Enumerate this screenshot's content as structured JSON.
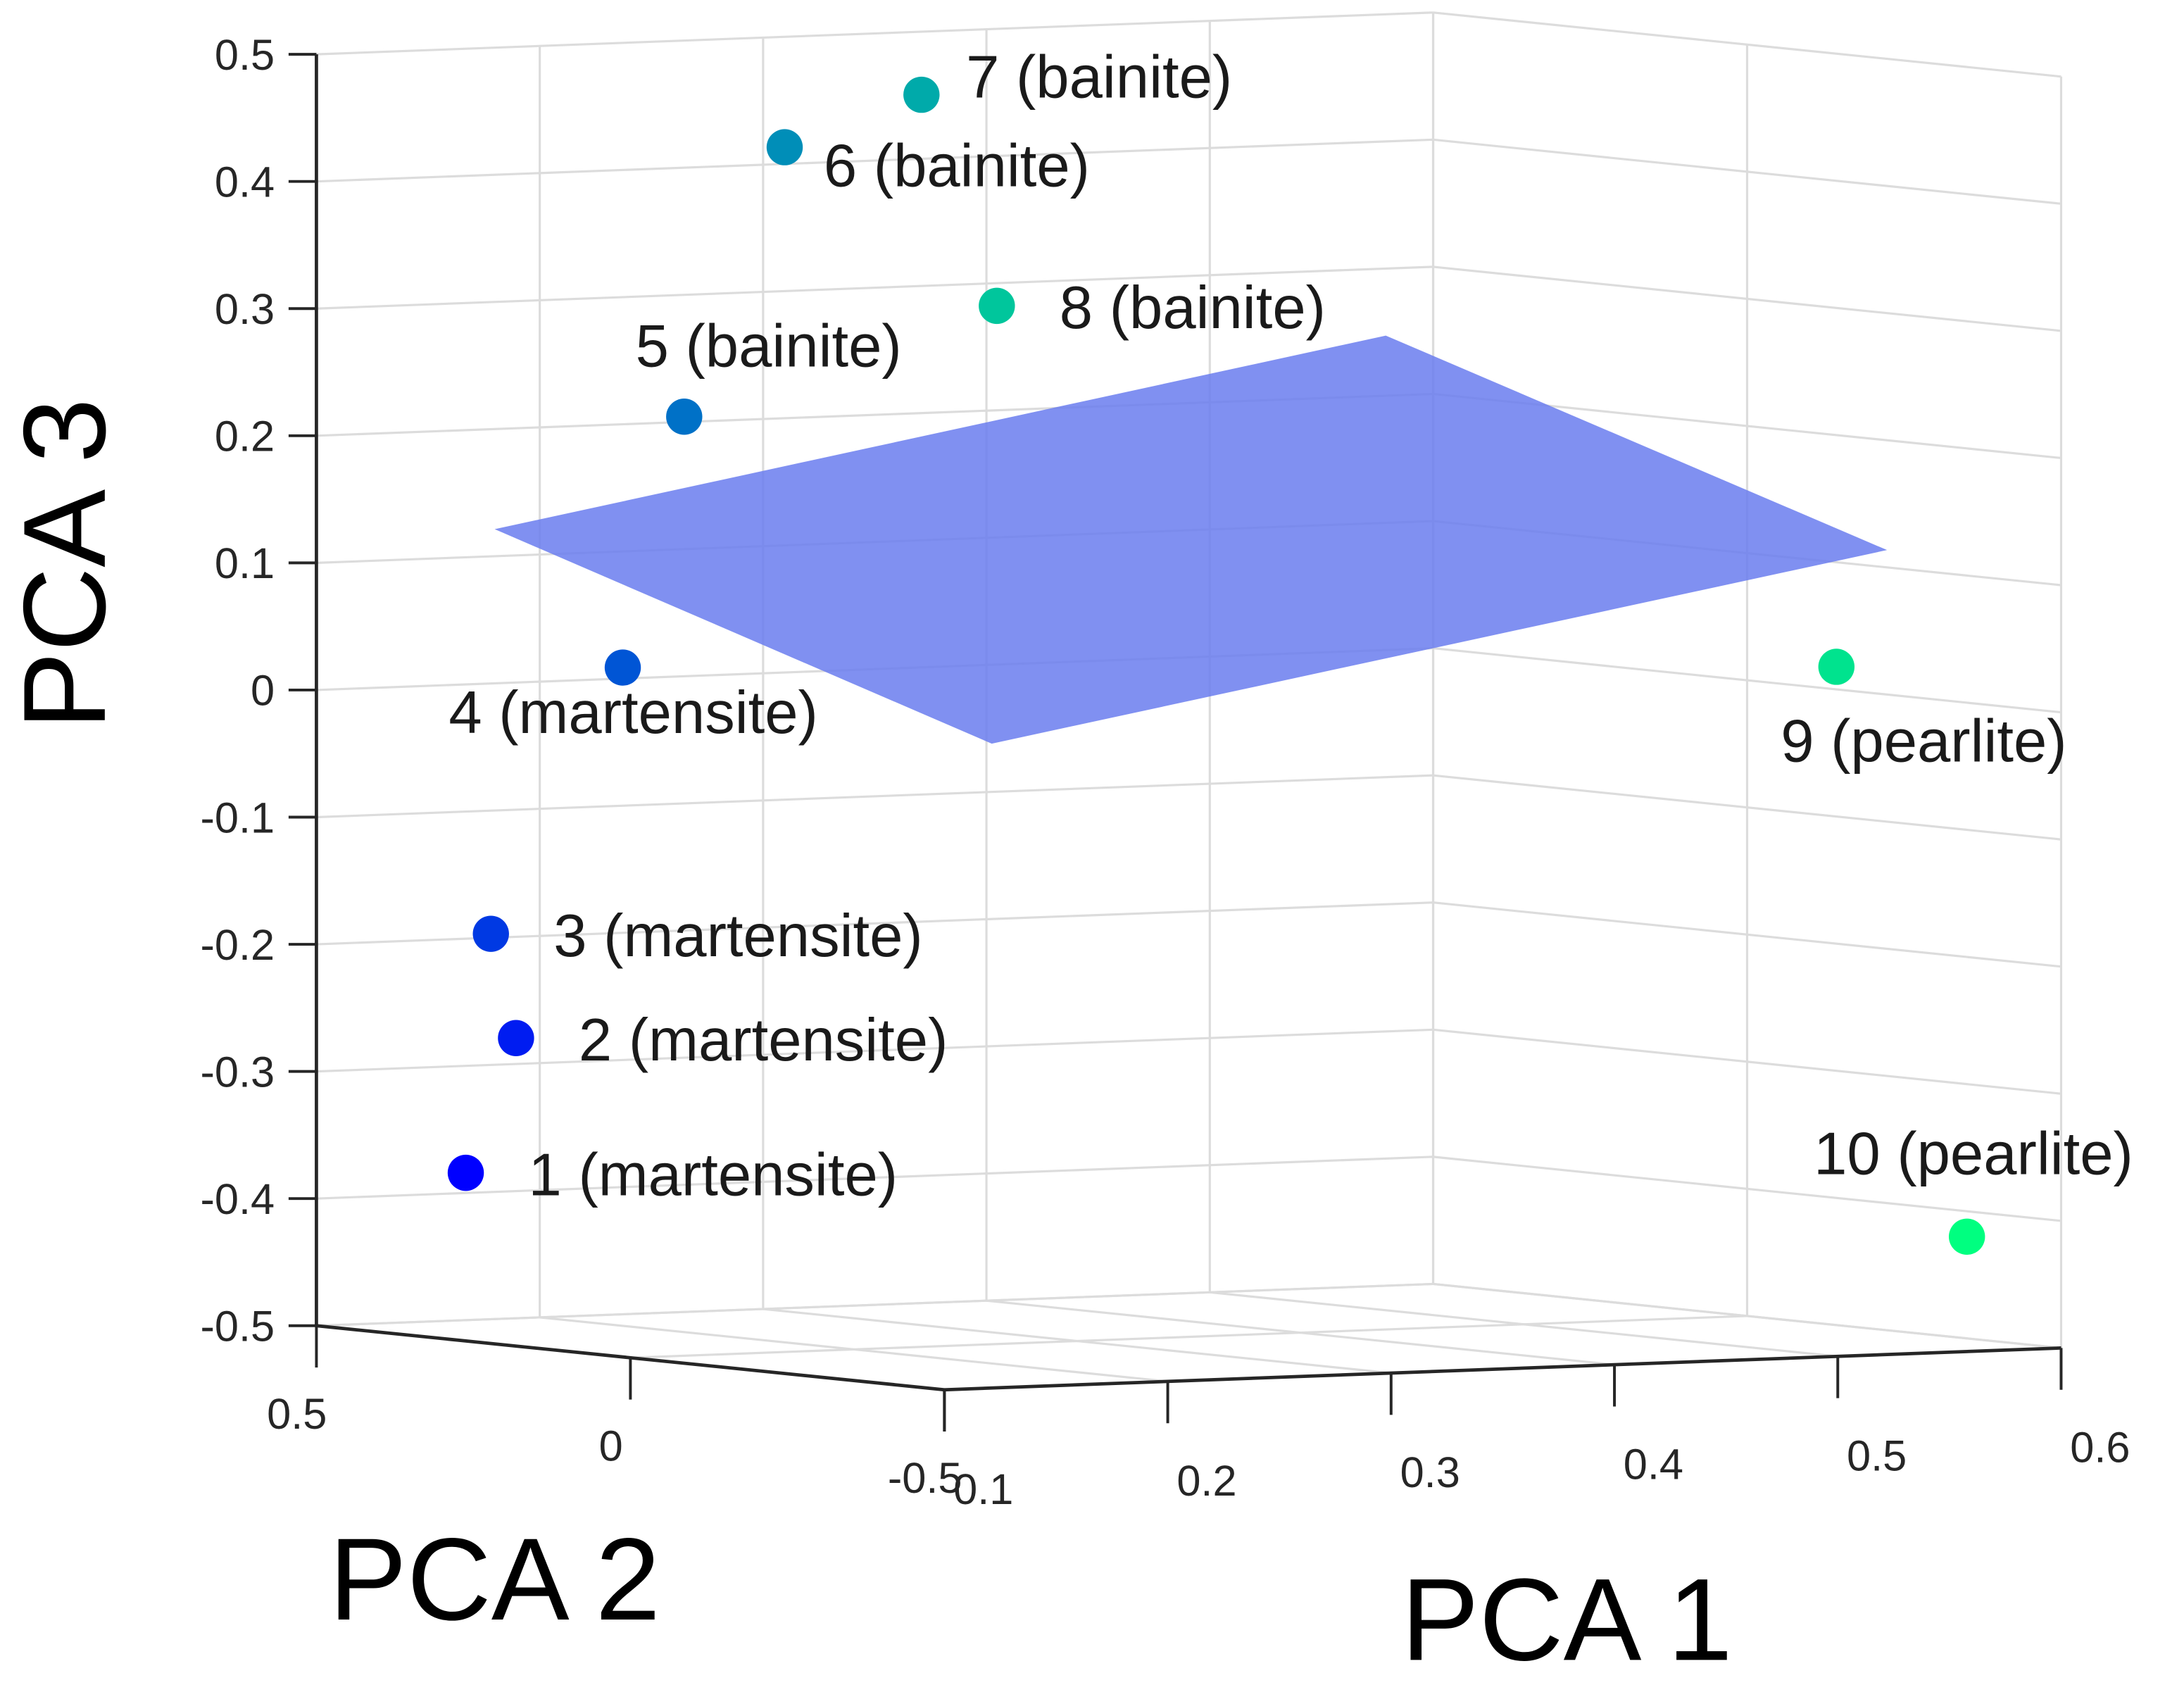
{
  "chart_data": {
    "type": "scatter",
    "dimensions": 3,
    "title": "",
    "xlabel": "PCA 1",
    "ylabel": "PCA 2",
    "zlabel": "PCA 3",
    "xlim": [
      0.1,
      0.6
    ],
    "ylim": [
      -0.5,
      0.5
    ],
    "zlim": [
      -0.5,
      0.5
    ],
    "grid": true,
    "x_ticks": [
      "0.1",
      "0.2",
      "0.3",
      "0.4",
      "0.5",
      "0.6"
    ],
    "y_ticks": [
      "-0.5",
      "0",
      "0.5"
    ],
    "z_ticks": [
      "-0.5",
      "-0.4",
      "-0.3",
      "-0.2",
      "-0.1",
      "0",
      "0.1",
      "0.2",
      "0.3",
      "0.4",
      "0.5"
    ],
    "colormap": "winter",
    "separating_plane": {
      "color": "#6a7cee",
      "opacity": 0.85
    },
    "points": [
      {
        "label": "1 (martensite)",
        "pca1": 0.15,
        "pca2": 0.44,
        "pca3": -0.38,
        "label_pos": "right"
      },
      {
        "label": "2 (martensite)",
        "pca1": 0.15,
        "pca2": 0.36,
        "pca3": -0.27,
        "label_pos": "right"
      },
      {
        "label": "3 (martensite)",
        "pca1": 0.15,
        "pca2": 0.4,
        "pca3": -0.19,
        "label_pos": "right"
      },
      {
        "label": "4 (martensite)",
        "pca1": 0.15,
        "pca2": 0.19,
        "pca3": 0.03,
        "label_pos": "below"
      },
      {
        "label": "5 (bainite)",
        "pca1": 0.2,
        "pca2": 0.27,
        "pca3": 0.22,
        "label_pos": "above"
      },
      {
        "label": "6 (bainite)",
        "pca1": 0.2,
        "pca2": 0.11,
        "pca3": 0.44,
        "label_pos": "right-low"
      },
      {
        "label": "7 (bainite)",
        "pca1": 0.25,
        "pca2": 0.07,
        "pca3": 0.48,
        "label_pos": "right-high"
      },
      {
        "label": "8 (bainite)",
        "pca1": 0.25,
        "pca2": -0.05,
        "pca3": 0.32,
        "label_pos": "right"
      },
      {
        "label": "9 (pearlite)",
        "pca1": 0.55,
        "pca2": -0.32,
        "pca3": 0.03,
        "label_pos": "below"
      },
      {
        "label": "10 (pearlite)",
        "pca1": 0.6,
        "pca2": -0.35,
        "pca3": -0.42,
        "label_pos": "above"
      }
    ]
  }
}
